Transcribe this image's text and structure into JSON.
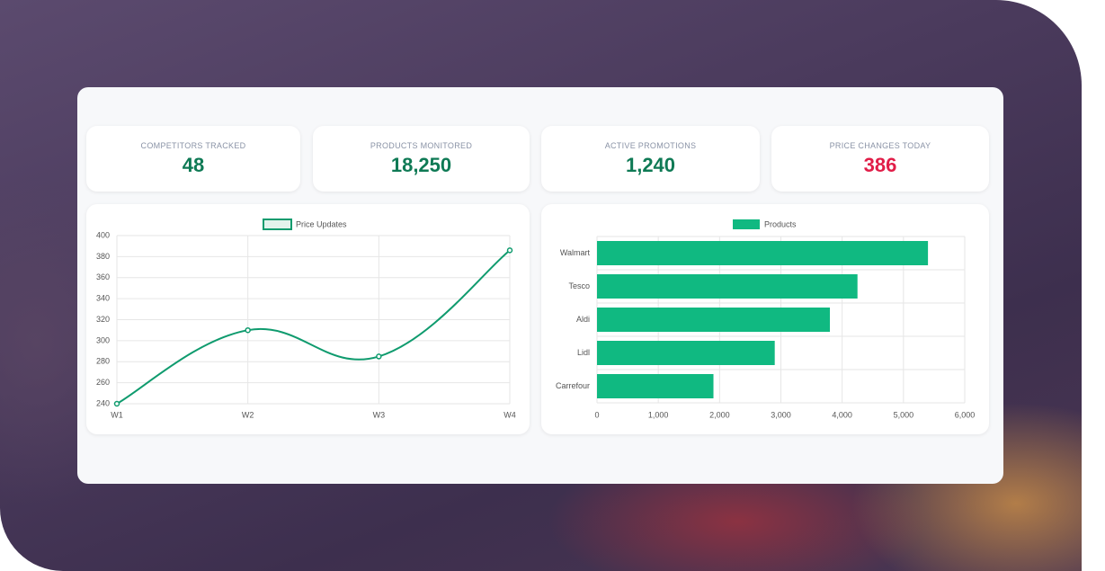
{
  "kpis": [
    {
      "label": "COMPETITORS TRACKED",
      "value": "48",
      "color": "#0f7a55"
    },
    {
      "label": "PRODUCTS MONITORED",
      "value": "18,250",
      "color": "#0f7a55"
    },
    {
      "label": "ACTIVE PROMOTIONS",
      "value": "1,240",
      "color": "#0f7a55"
    },
    {
      "label": "PRICE CHANGES TODAY",
      "value": "386",
      "color": "#e11d48"
    }
  ],
  "chart_data": [
    {
      "type": "line",
      "categories": [
        "W1",
        "W2",
        "W3",
        "W4"
      ],
      "series": [
        {
          "name": "Price Updates",
          "color": "#0f9b6e",
          "values": [
            240,
            310,
            285,
            386
          ]
        }
      ],
      "ylim": [
        240,
        400
      ],
      "yticks": [
        240,
        260,
        280,
        300,
        320,
        340,
        360,
        380,
        400
      ],
      "grid": true
    },
    {
      "type": "hbar",
      "categories": [
        "Walmart",
        "Tesco",
        "Aldi",
        "Lidl",
        "Carrefour"
      ],
      "series": [
        {
          "name": "Products",
          "color": "#10b981",
          "values": [
            5400,
            4250,
            3800,
            2900,
            1900
          ]
        }
      ],
      "xlim": [
        0,
        6000
      ],
      "xticks": [
        0,
        {
          "value": 1000,
          "label": "1,000"
        },
        {
          "value": 2000,
          "label": "2,000"
        },
        {
          "value": 3000,
          "label": "3,000"
        },
        {
          "value": 4000,
          "label": "4,000"
        },
        {
          "value": 5000,
          "label": "5,000"
        },
        {
          "value": 6000,
          "label": "6,000"
        }
      ],
      "grid": true
    }
  ]
}
